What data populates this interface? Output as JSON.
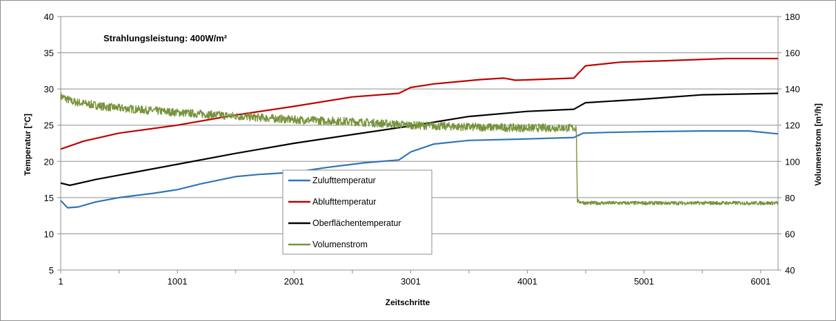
{
  "chart_data": {
    "type": "line",
    "title": "",
    "annotation": "Strahlungsleistung: 400W/m²",
    "xlabel": "Zeitschritte",
    "ylabel_left": "Temperatur [°C]",
    "ylabel_right": "Volumenstrom [m³/h]",
    "xlim": [
      1,
      6150
    ],
    "ylim_left": [
      5,
      40
    ],
    "ylim_right": [
      40,
      180
    ],
    "x_ticks": [
      1,
      1001,
      2001,
      3001,
      4001,
      5001,
      6001
    ],
    "y_ticks_left": [
      5,
      10,
      15,
      20,
      25,
      30,
      35,
      40
    ],
    "y_ticks_right": [
      40,
      60,
      80,
      100,
      120,
      140,
      160,
      180
    ],
    "grid": "horizontal",
    "legend_position": "center-left",
    "series": [
      {
        "name": "Zulufttemperatur",
        "axis": "left",
        "color": "#2e75b6",
        "x": [
          1,
          60,
          150,
          300,
          500,
          800,
          1001,
          1200,
          1500,
          1700,
          2000,
          2300,
          2600,
          2900,
          3001,
          3200,
          3500,
          4000,
          4400,
          4480,
          4700,
          5000,
          5500,
          5900,
          6150
        ],
        "y": [
          14.6,
          13.6,
          13.7,
          14.4,
          15.0,
          15.6,
          16.1,
          16.9,
          17.9,
          18.2,
          18.5,
          19.2,
          19.8,
          20.2,
          21.3,
          22.4,
          22.9,
          23.1,
          23.3,
          23.9,
          24.0,
          24.1,
          24.2,
          24.2,
          23.8
        ]
      },
      {
        "name": "Ablufttemperatur",
        "axis": "left",
        "color": "#c00000",
        "x": [
          1,
          200,
          500,
          1001,
          1500,
          2001,
          2500,
          2900,
          3001,
          3200,
          3600,
          3800,
          3900,
          4400,
          4440,
          4500,
          4800,
          5200,
          5700,
          6150
        ],
        "y": [
          21.7,
          22.8,
          23.9,
          25.0,
          26.4,
          27.6,
          28.9,
          29.4,
          30.2,
          30.7,
          31.3,
          31.5,
          31.2,
          31.5,
          32.2,
          33.2,
          33.7,
          33.9,
          34.2,
          34.2
        ]
      },
      {
        "name": "Oberflächentemperatur",
        "axis": "left",
        "color": "#000000",
        "x": [
          1,
          80,
          300,
          700,
          1001,
          1500,
          2001,
          2500,
          3001,
          3500,
          4001,
          4400,
          4500,
          5001,
          5500,
          6150
        ],
        "y": [
          17.0,
          16.7,
          17.5,
          18.7,
          19.6,
          21.1,
          22.5,
          23.7,
          24.9,
          26.2,
          26.9,
          27.2,
          28.1,
          28.6,
          29.2,
          29.4
        ]
      },
      {
        "name": "Volumenstrom",
        "axis": "right",
        "color": "#77933c",
        "x": [
          1,
          100,
          400,
          1001,
          1500,
          2001,
          2500,
          3001,
          3500,
          4001,
          4420,
          4430,
          4500,
          5001,
          5500,
          6150
        ],
        "y": [
          136,
          133,
          130,
          127,
          125,
          123,
          122,
          120,
          119,
          118.5,
          118.5,
          78,
          77,
          77,
          77,
          77
        ]
      }
    ]
  }
}
